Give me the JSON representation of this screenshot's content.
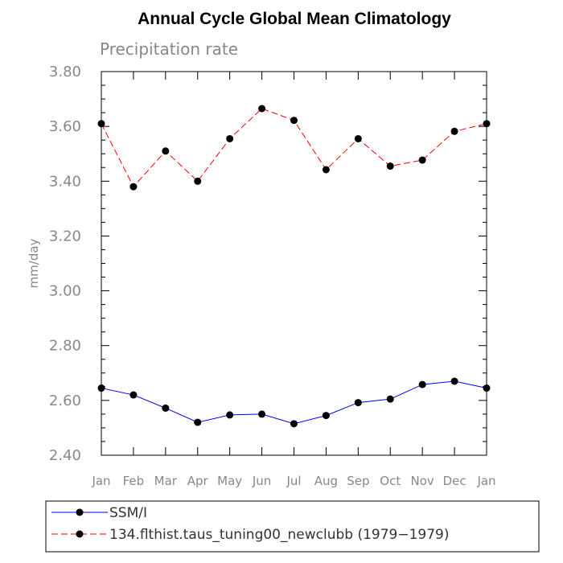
{
  "chart_data": {
    "type": "line",
    "title": "Annual Cycle Global Mean Climatology",
    "subtitle": "Precipitation rate",
    "ylabel": "mm/day",
    "xlabel": "",
    "ylim": [
      2.4,
      3.8
    ],
    "yticks": [
      "2.40",
      "2.60",
      "2.80",
      "3.00",
      "3.20",
      "3.40",
      "3.60",
      "3.80"
    ],
    "categories": [
      "Jan",
      "Feb",
      "Mar",
      "Apr",
      "May",
      "Jun",
      "Jul",
      "Aug",
      "Sep",
      "Oct",
      "Nov",
      "Dec",
      "Jan"
    ],
    "series": [
      {
        "name": "SSM/I",
        "color": "#0000ff",
        "dash": "solid",
        "values": [
          2.645,
          2.62,
          2.572,
          2.52,
          2.547,
          2.55,
          2.515,
          2.545,
          2.592,
          2.605,
          2.658,
          2.67,
          2.645
        ]
      },
      {
        "name": "134.flthist.taus_tuning00_newclubb (1979−1979)",
        "color": "#ff0000",
        "dash": "dashed",
        "values": [
          3.61,
          3.38,
          3.51,
          3.4,
          3.555,
          3.665,
          3.622,
          3.442,
          3.555,
          3.455,
          3.477,
          3.582,
          3.61
        ]
      }
    ],
    "legend_position": "bottom",
    "grid": false
  }
}
